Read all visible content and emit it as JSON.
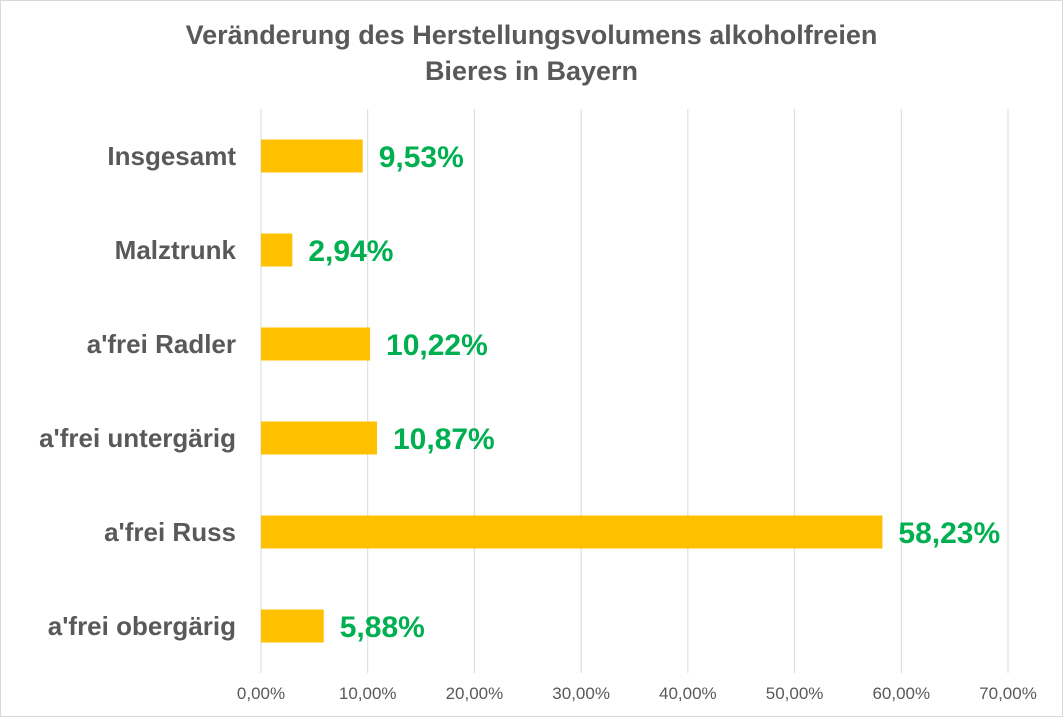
{
  "chart_data": {
    "type": "bar",
    "orientation": "horizontal",
    "title_lines": [
      "Veränderung des Herstellungsvolumens alkoholfreien",
      "Bieres in Bayern"
    ],
    "categories": [
      "Insgesamt",
      "Malztrunk",
      "a'frei Radler",
      "a'frei untergärig",
      "a'frei Russ",
      "a'frei obergärig"
    ],
    "values": [
      9.53,
      2.94,
      10.22,
      10.87,
      58.23,
      5.88
    ],
    "data_labels": [
      "9,53%",
      "2,94%",
      "10,22%",
      "10,87%",
      "58,23%",
      "5,88%"
    ],
    "xlim": [
      0,
      70
    ],
    "x_ticks": [
      0,
      10,
      20,
      30,
      40,
      50,
      60,
      70
    ],
    "x_tick_labels": [
      "0,00%",
      "10,00%",
      "20,00%",
      "30,00%",
      "40,00%",
      "50,00%",
      "60,00%",
      "70,00%"
    ],
    "grid": "vertical",
    "legend": "none",
    "colors": {
      "bar": "#FFC000",
      "data_label": "#00B050",
      "category_label": "#595959",
      "tick_label": "#595959",
      "grid": "#d9d9d9"
    }
  }
}
